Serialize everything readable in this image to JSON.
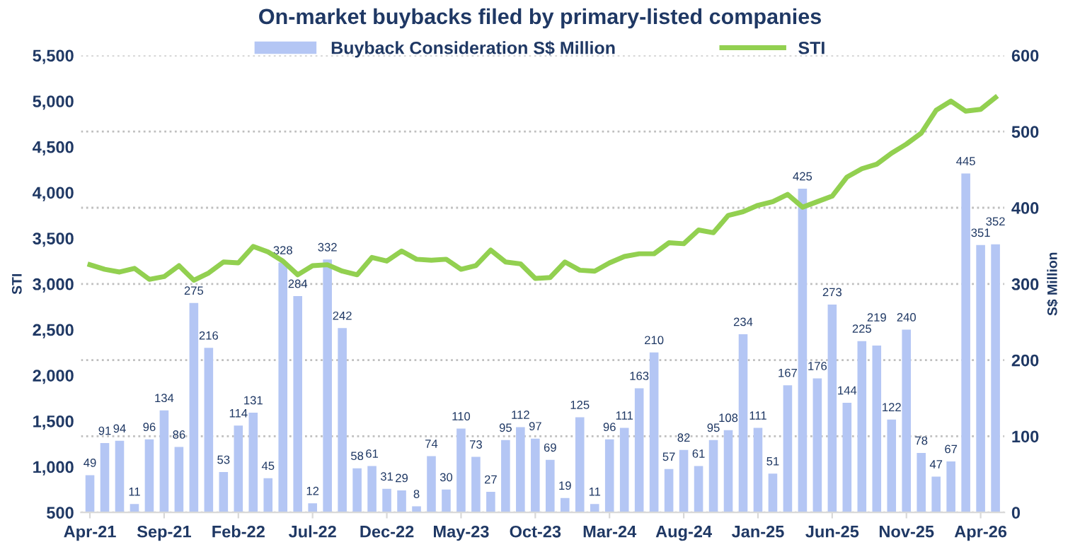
{
  "chart_data": {
    "type": "bar",
    "title": "On-market buybacks filed by primary-listed companies",
    "ylabel": "STI",
    "y2label": "S$ Million",
    "categories": [
      "Apr-21",
      null,
      null,
      null,
      null,
      "Sep-21",
      null,
      null,
      null,
      null,
      "Feb-22",
      null,
      null,
      null,
      null,
      "Jul-22",
      null,
      null,
      null,
      null,
      "Dec-22",
      null,
      null,
      null,
      null,
      "May-23",
      null,
      null,
      null,
      null,
      "Oct-23",
      null,
      null,
      null,
      null,
      "Mar-24",
      null,
      null,
      null,
      null,
      "Aug-24",
      null,
      null,
      null,
      null,
      "Jan-25",
      null,
      null,
      null,
      null,
      "Jun-25",
      null,
      null,
      null,
      null,
      "Nov-25",
      null,
      null,
      null,
      null,
      "Apr-26",
      null
    ],
    "series": [
      {
        "name": "Buyback Consideration S$ Million",
        "axis": "y2",
        "color": "#b4c6f4",
        "values": [
          49,
          91,
          94,
          11,
          96,
          134,
          86,
          275,
          216,
          53,
          114,
          131,
          45,
          328,
          284,
          12,
          332,
          242,
          58,
          61,
          31,
          29,
          8,
          74,
          30,
          110,
          73,
          27,
          95,
          112,
          97,
          69,
          19,
          125,
          11,
          96,
          111,
          163,
          210,
          57,
          82,
          61,
          95,
          108,
          234,
          111,
          51,
          167,
          425,
          176,
          273,
          144,
          225,
          219,
          122,
          240,
          78,
          47,
          67,
          445,
          351,
          352
        ],
        "value_labels": [
          "49",
          "91",
          "94",
          "11",
          "96",
          "134",
          "86",
          "275",
          "216",
          "53",
          "114",
          "131",
          "45",
          "328",
          "284",
          "12",
          "332",
          "242",
          "58",
          "61",
          "31",
          "29",
          "8",
          "74",
          "30",
          "110",
          "73",
          "27",
          "95",
          "112",
          "97",
          "69",
          "19",
          "125",
          "11",
          "96",
          "111",
          "163",
          "210",
          "57",
          "82",
          "61",
          "95",
          "108",
          "234",
          "111",
          "51",
          "167",
          "425",
          "176",
          "273",
          "144",
          "225",
          "219",
          "122",
          "240",
          "78",
          "47",
          "67",
          "445",
          "351",
          "352"
        ]
      },
      {
        "name": "STI",
        "type": "line",
        "axis": "y",
        "color": "#92d050",
        "values": [
          3210,
          3160,
          3130,
          3170,
          3050,
          3080,
          3200,
          3040,
          3120,
          3240,
          3230,
          3410,
          3350,
          3250,
          3100,
          3200,
          3210,
          3140,
          3100,
          3290,
          3250,
          3360,
          3270,
          3260,
          3270,
          3160,
          3200,
          3370,
          3240,
          3220,
          3060,
          3070,
          3240,
          3150,
          3140,
          3230,
          3300,
          3330,
          3330,
          3450,
          3440,
          3590,
          3560,
          3750,
          3790,
          3860,
          3900,
          3980,
          3840,
          3900,
          3960,
          4170,
          4260,
          4310,
          4430,
          4530,
          4650,
          4900,
          5000,
          4890,
          4910,
          5040
        ]
      }
    ],
    "ylim": [
      500,
      5500
    ],
    "yticks": [
      {
        "value": 500,
        "label": "500"
      },
      {
        "value": 1000,
        "label": "1,000"
      },
      {
        "value": 1500,
        "label": "1,500"
      },
      {
        "value": 2000,
        "label": "2,000"
      },
      {
        "value": 2500,
        "label": "2,500"
      },
      {
        "value": 3000,
        "label": "3,000"
      },
      {
        "value": 3500,
        "label": "3,500"
      },
      {
        "value": 4000,
        "label": "4,000"
      },
      {
        "value": 4500,
        "label": "4,500"
      },
      {
        "value": 5000,
        "label": "5,000"
      },
      {
        "value": 5500,
        "label": "5,500"
      }
    ],
    "y2lim": [
      0,
      600
    ],
    "y2ticks": [
      0,
      100,
      200,
      300,
      400,
      500,
      600
    ],
    "grid": "y",
    "legend": "top",
    "marker": "none",
    "line_style": "solid"
  }
}
